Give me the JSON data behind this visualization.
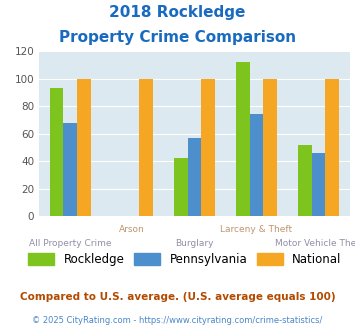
{
  "title_line1": "2018 Rockledge",
  "title_line2": "Property Crime Comparison",
  "categories": [
    "All Property Crime",
    "Arson",
    "Burglary",
    "Larceny & Theft",
    "Motor Vehicle Theft"
  ],
  "rockledge_vals": [
    93,
    0,
    42,
    112,
    52
  ],
  "pennsylvania_vals": [
    68,
    0,
    57,
    74,
    46
  ],
  "national_vals": [
    100,
    100,
    100,
    100,
    100
  ],
  "color_rockledge": "#7dc51e",
  "color_pennsylvania": "#4d8fcc",
  "color_national": "#f5a623",
  "ylim": [
    0,
    120
  ],
  "yticks": [
    0,
    20,
    40,
    60,
    80,
    100,
    120
  ],
  "bar_width": 0.22,
  "bg_color": "#dce9f0",
  "title_color": "#1a6bbf",
  "xlabel_color_near": "#c0956e",
  "xlabel_color_far": "#9090a8",
  "footnote1": "Compared to U.S. average. (U.S. average equals 100)",
  "footnote2": "© 2025 CityRating.com - https://www.cityrating.com/crime-statistics/",
  "footnote1_color": "#b34a00",
  "footnote2_color": "#4a86c8",
  "legend_labels": [
    "Rockledge",
    "Pennsylvania",
    "National"
  ]
}
